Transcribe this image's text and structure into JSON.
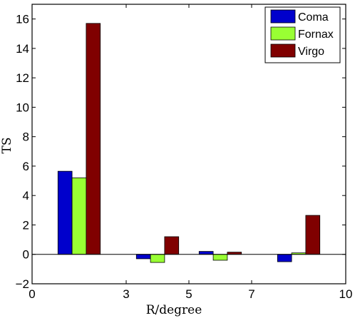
{
  "chart_data": {
    "type": "bar",
    "title": "",
    "xlabel": "R/degree",
    "ylabel": "TS",
    "xlim": [
      0,
      10
    ],
    "ylim": [
      -2,
      17
    ],
    "xticks": [
      "0",
      "3",
      "5",
      "7",
      "10"
    ],
    "yticks": [
      "−2",
      "0",
      "2",
      "4",
      "6",
      "8",
      "10",
      "12",
      "14",
      "16"
    ],
    "categories": [
      "0–3",
      "3–5",
      "5–7",
      "7–10"
    ],
    "legend_position": "top-right",
    "grid": false,
    "series": [
      {
        "name": "Coma",
        "color": "#0000cc",
        "values": [
          5.65,
          -0.3,
          0.2,
          -0.5
        ]
      },
      {
        "name": "Fornax",
        "color": "#99ff33",
        "values": [
          5.2,
          -0.55,
          -0.4,
          0.1
        ]
      },
      {
        "name": "Virgo",
        "color": "#800000",
        "values": [
          15.7,
          1.2,
          0.15,
          2.65
        ]
      }
    ]
  }
}
